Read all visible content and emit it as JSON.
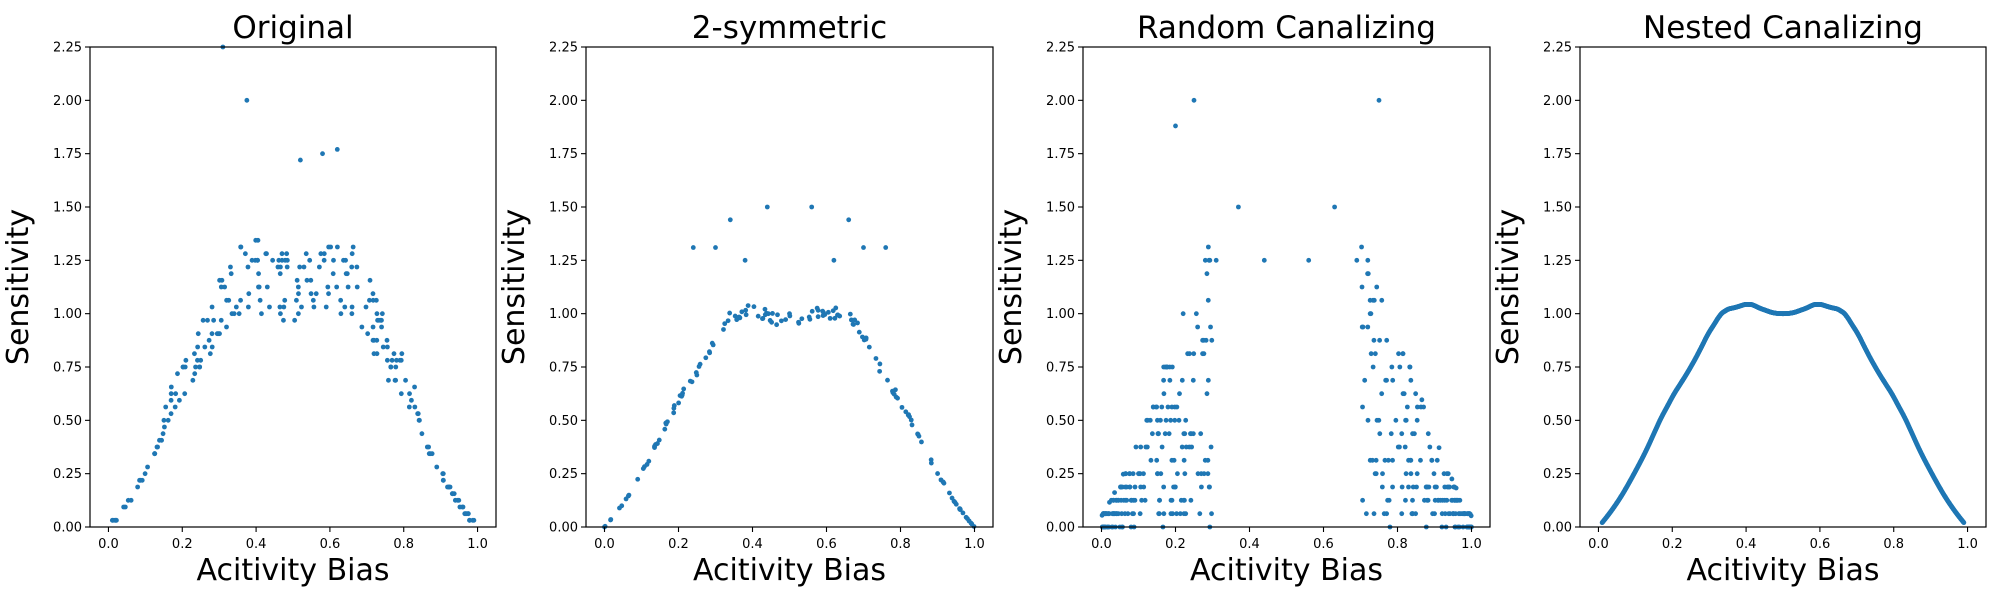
{
  "point_color": "#1f77b4",
  "chart_data": [
    {
      "type": "scatter",
      "title": "Original",
      "xlabel": "Acitivity Bias",
      "ylabel": "Sensitivity",
      "xlim": [
        -0.05,
        1.05
      ],
      "ylim": [
        0,
        2.25
      ],
      "xticks": [
        0.0,
        0.2,
        0.4,
        0.6,
        0.8,
        1.0
      ],
      "xtick_labels": [
        "0.0",
        "0.2",
        "0.4",
        "0.6",
        "0.8",
        "1.0"
      ],
      "yticks": [
        0.0,
        0.25,
        0.5,
        0.75,
        1.0,
        1.25,
        1.5,
        1.75,
        2.0,
        2.25
      ],
      "ytick_labels": [
        "0.00",
        "0.25",
        "0.50",
        "0.75",
        "1.00",
        "1.25",
        "1.50",
        "1.75",
        "2.00",
        "2.25"
      ],
      "generator": "original",
      "point_count": 240
    },
    {
      "type": "scatter",
      "title": "2-symmetric",
      "xlabel": "Acitivity Bias",
      "ylabel": "Sensitivity",
      "xlim": [
        -0.05,
        1.05
      ],
      "ylim": [
        0,
        2.25
      ],
      "xticks": [
        0.0,
        0.2,
        0.4,
        0.6,
        0.8,
        1.0
      ],
      "xtick_labels": [
        "0.0",
        "0.2",
        "0.4",
        "0.6",
        "0.8",
        "1.0"
      ],
      "yticks": [
        0.0,
        0.25,
        0.5,
        0.75,
        1.0,
        1.25,
        1.5,
        1.75,
        2.0,
        2.25
      ],
      "ytick_labels": [
        "0.00",
        "0.25",
        "0.50",
        "0.75",
        "1.00",
        "1.25",
        "1.50",
        "1.75",
        "2.00",
        "2.25"
      ],
      "generator": "symmetric",
      "point_count": 150
    },
    {
      "type": "scatter",
      "title": "Random Canalizing",
      "xlabel": "Acitivity Bias",
      "ylabel": "Sensitivity",
      "xlim": [
        -0.05,
        1.05
      ],
      "ylim": [
        0,
        2.25
      ],
      "xticks": [
        0.0,
        0.2,
        0.4,
        0.6,
        0.8,
        1.0
      ],
      "xtick_labels": [
        "0.0",
        "0.2",
        "0.4",
        "0.6",
        "0.8",
        "1.0"
      ],
      "yticks": [
        0.0,
        0.25,
        0.5,
        0.75,
        1.0,
        1.25,
        1.5,
        1.75,
        2.0,
        2.25
      ],
      "ytick_labels": [
        "0.00",
        "0.25",
        "0.50",
        "0.75",
        "1.00",
        "1.25",
        "1.50",
        "1.75",
        "2.00",
        "2.25"
      ],
      "generator": "random_canalizing",
      "point_count": 400
    },
    {
      "type": "scatter",
      "title": "Nested Canalizing",
      "xlabel": "Acitivity Bias",
      "ylabel": "Sensitivity",
      "xlim": [
        -0.05,
        1.05
      ],
      "ylim": [
        0,
        2.25
      ],
      "xticks": [
        0.0,
        0.2,
        0.4,
        0.6,
        0.8,
        1.0
      ],
      "xtick_labels": [
        "0.0",
        "0.2",
        "0.4",
        "0.6",
        "0.8",
        "1.0"
      ],
      "yticks": [
        0.0,
        0.25,
        0.5,
        0.75,
        1.0,
        1.25,
        1.5,
        1.75,
        2.0,
        2.25
      ],
      "ytick_labels": [
        "0.00",
        "0.25",
        "0.50",
        "0.75",
        "1.00",
        "1.25",
        "1.50",
        "1.75",
        "2.00",
        "2.25"
      ],
      "generator": "nested_canalizing",
      "point_count": 1200
    }
  ]
}
